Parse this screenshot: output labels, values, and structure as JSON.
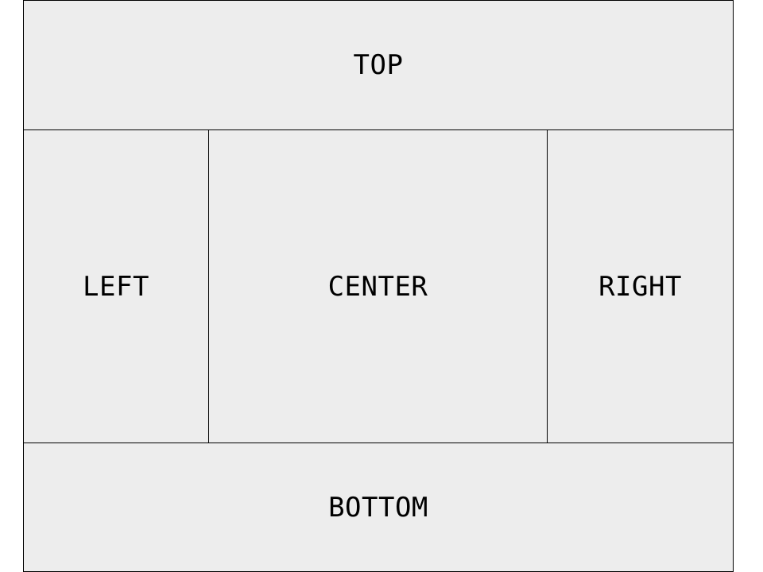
{
  "regions": {
    "top": "TOP",
    "left": "LEFT",
    "center": "CENTER",
    "right": "RIGHT",
    "bottom": "BOTTOM"
  },
  "colors": {
    "region_fill": "#ededed",
    "border": "#000000",
    "text": "#000000"
  }
}
